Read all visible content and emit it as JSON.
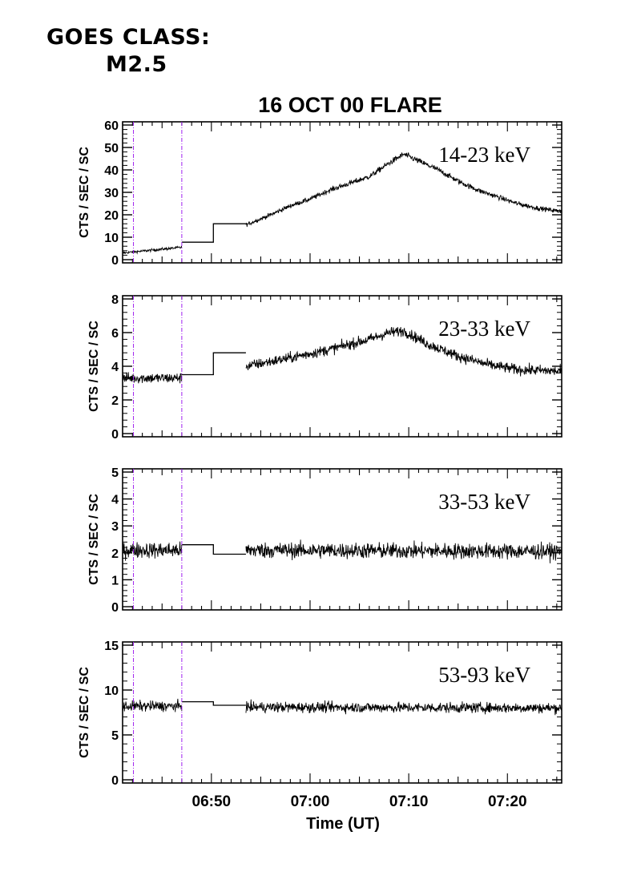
{
  "header": {
    "goes_label": "GOES CLASS:",
    "goes_class": "M2.5"
  },
  "chart_data": {
    "type": "line",
    "title": "16 OCT 00 FLARE",
    "xlabel": "Time (UT)",
    "xlim_minutes": [
      41.0,
      85.5
    ],
    "x_ticks": [
      {
        "minutes": 50,
        "label": "06:50"
      },
      {
        "minutes": 60,
        "label": "07:00"
      },
      {
        "minutes": 70,
        "label": "07:10"
      },
      {
        "minutes": 80,
        "label": "07:20"
      }
    ],
    "x_tick_hours": [
      "06",
      "07"
    ],
    "marker_lines_minutes": [
      42.1,
      47.0
    ],
    "marker_color": "#a020f0",
    "line_color": "#000000",
    "panels": [
      {
        "name": "14-23 keV",
        "ylabel": "CTS / SEC / SC",
        "ylim": [
          0,
          60
        ],
        "yticks": [
          0,
          10,
          20,
          30,
          40,
          50,
          60
        ],
        "noise": 0.8,
        "segments": [
          {
            "kind": "noisy",
            "points": [
              [
                41.0,
                3.0
              ],
              [
                47.0,
                5.5
              ]
            ]
          },
          {
            "kind": "step",
            "points": [
              [
                47.0,
                7.8
              ],
              [
                50.2,
                7.8
              ],
              [
                50.2,
                16.0
              ],
              [
                53.5,
                16.0
              ]
            ]
          },
          {
            "kind": "noisy",
            "points": [
              [
                53.5,
                15.5
              ],
              [
                56,
                20
              ],
              [
                58,
                24
              ],
              [
                60,
                27
              ],
              [
                62,
                31
              ],
              [
                64,
                34
              ],
              [
                66,
                37
              ],
              [
                68,
                43
              ],
              [
                69.5,
                47
              ],
              [
                71,
                44
              ],
              [
                73,
                40
              ],
              [
                75,
                35
              ],
              [
                77,
                31
              ],
              [
                79,
                28
              ],
              [
                81,
                25
              ],
              [
                83,
                23
              ],
              [
                85.5,
                21.5
              ]
            ]
          }
        ]
      },
      {
        "name": "23-33 keV",
        "ylabel": "CTS / SEC / SC",
        "ylim": [
          0,
          8
        ],
        "yticks": [
          0,
          2,
          4,
          6,
          8
        ],
        "noise": 0.3,
        "segments": [
          {
            "kind": "noisy",
            "points": [
              [
                41.0,
                3.3
              ],
              [
                47.0,
                3.3
              ]
            ]
          },
          {
            "kind": "step",
            "points": [
              [
                47.0,
                3.5
              ],
              [
                50.2,
                3.5
              ],
              [
                50.2,
                4.8
              ],
              [
                53.5,
                4.8
              ]
            ]
          },
          {
            "kind": "noisy",
            "points": [
              [
                53.5,
                4.0
              ],
              [
                58,
                4.5
              ],
              [
                62,
                5.0
              ],
              [
                66,
                5.6
              ],
              [
                68,
                6.0
              ],
              [
                69.5,
                6.1
              ],
              [
                72,
                5.3
              ],
              [
                75,
                4.6
              ],
              [
                78,
                4.1
              ],
              [
                81,
                3.8
              ],
              [
                85.5,
                3.7
              ]
            ]
          }
        ]
      },
      {
        "name": "33-53 keV",
        "ylabel": "CTS / SEC / SC",
        "ylim": [
          0,
          5
        ],
        "yticks": [
          0,
          1,
          2,
          3,
          4,
          5
        ],
        "noise": 0.28,
        "segments": [
          {
            "kind": "noisy",
            "points": [
              [
                41.0,
                2.1
              ],
              [
                47.0,
                2.1
              ]
            ]
          },
          {
            "kind": "step",
            "points": [
              [
                47.0,
                2.3
              ],
              [
                50.2,
                2.3
              ],
              [
                50.2,
                1.95
              ],
              [
                53.5,
                1.95
              ]
            ]
          },
          {
            "kind": "noisy",
            "points": [
              [
                53.5,
                2.1
              ],
              [
                85.5,
                2.05
              ]
            ]
          }
        ]
      },
      {
        "name": "53-93 keV",
        "ylabel": "CTS / SEC / SC",
        "ylim": [
          0,
          15
        ],
        "yticks": [
          0,
          5,
          10,
          15
        ],
        "noise": 0.55,
        "segments": [
          {
            "kind": "noisy",
            "points": [
              [
                41.0,
                8.2
              ],
              [
                47.0,
                8.2
              ]
            ]
          },
          {
            "kind": "step",
            "points": [
              [
                47.0,
                8.7
              ],
              [
                50.2,
                8.7
              ],
              [
                50.2,
                8.3
              ],
              [
                53.5,
                8.3
              ]
            ]
          },
          {
            "kind": "noisy",
            "points": [
              [
                53.5,
                8.1
              ],
              [
                85.5,
                8.0
              ]
            ]
          }
        ]
      }
    ]
  }
}
